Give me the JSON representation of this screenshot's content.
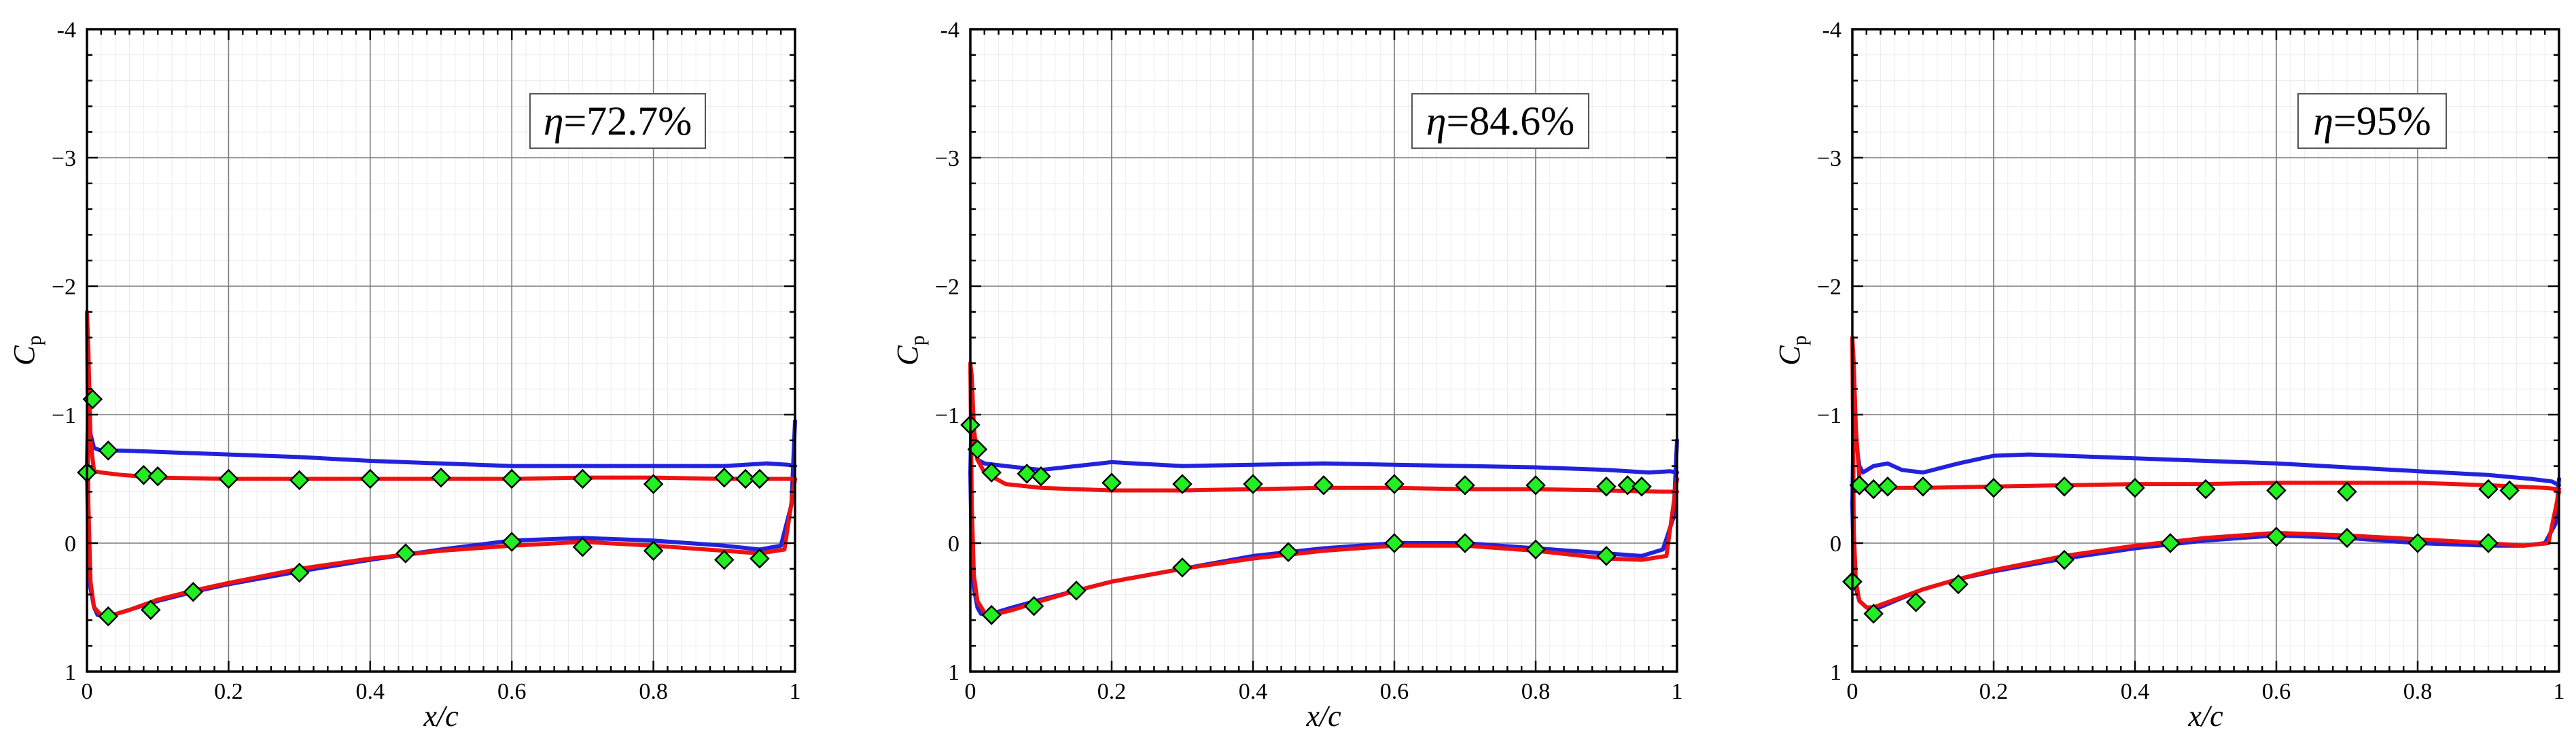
{
  "colors": {
    "blue_line": "#2222dd",
    "red_line": "#ee1111",
    "marker_fill": "#22ee22",
    "marker_edge": "#000000"
  },
  "chart_data": [
    {
      "type": "line",
      "annotation": "η=72.7%",
      "annotation_eta": "η",
      "annotation_value": "=72.7%",
      "xlabel": "x/c",
      "ylabel": "C",
      "ylabel_sub": "p",
      "xlim": [
        0,
        1
      ],
      "ylim": [
        1,
        -4
      ],
      "y_inverted": true,
      "xticks": [
        "0",
        "0.2",
        "0.4",
        "0.6",
        "0.8",
        "1"
      ],
      "yticks": [
        "-4",
        "−3",
        "−2",
        "−1",
        "0",
        "1"
      ],
      "grid": true,
      "series": [
        {
          "marker": "diamond",
          "x": [
            0.0,
            0.008,
            0.03,
            0.08,
            0.1,
            0.2,
            0.3,
            0.4,
            0.5,
            0.6,
            0.7,
            0.8,
            0.9,
            0.93,
            0.95,
            0.03,
            0.09,
            0.15,
            0.3,
            0.45,
            0.6,
            0.7,
            0.8,
            0.9,
            0.95
          ],
          "y": [
            -0.55,
            -1.12,
            -0.72,
            -0.53,
            -0.52,
            -0.5,
            -0.49,
            -0.5,
            -0.51,
            -0.5,
            -0.5,
            -0.46,
            -0.51,
            -0.5,
            -0.5,
            0.57,
            0.52,
            0.38,
            0.23,
            0.08,
            -0.01,
            0.03,
            0.06,
            0.13,
            0.12
          ]
        },
        {
          "color": "blue",
          "x": [
            1.0,
            0.99,
            0.96,
            0.9,
            0.8,
            0.7,
            0.6,
            0.5,
            0.4,
            0.3,
            0.2,
            0.1,
            0.05,
            0.02,
            0.01,
            0.005,
            0.002,
            0.0,
            0.002,
            0.005,
            0.01,
            0.015,
            0.03,
            0.06,
            0.1,
            0.15,
            0.2,
            0.3,
            0.4,
            0.5,
            0.6,
            0.7,
            0.8,
            0.9,
            0.95,
            0.98,
            0.995,
            1.0
          ],
          "y": [
            -0.6,
            -0.61,
            -0.62,
            -0.6,
            -0.6,
            -0.6,
            -0.6,
            -0.62,
            -0.64,
            -0.67,
            -0.69,
            -0.71,
            -0.72,
            -0.72,
            -0.74,
            -0.85,
            -1.2,
            -0.6,
            0.1,
            0.35,
            0.5,
            0.56,
            0.57,
            0.52,
            0.45,
            0.38,
            0.32,
            0.22,
            0.13,
            0.05,
            -0.02,
            -0.04,
            -0.02,
            0.02,
            0.05,
            0.02,
            -0.3,
            -0.95
          ]
        },
        {
          "color": "red",
          "x": [
            1.0,
            0.98,
            0.9,
            0.8,
            0.7,
            0.6,
            0.5,
            0.4,
            0.3,
            0.2,
            0.1,
            0.05,
            0.02,
            0.01,
            0.005,
            0.002,
            0.0,
            0.002,
            0.005,
            0.01,
            0.02,
            0.03,
            0.06,
            0.1,
            0.15,
            0.2,
            0.3,
            0.4,
            0.5,
            0.6,
            0.7,
            0.8,
            0.9,
            0.95,
            0.985,
            1.0
          ],
          "y": [
            -0.5,
            -0.5,
            -0.5,
            -0.51,
            -0.51,
            -0.5,
            -0.5,
            -0.5,
            -0.5,
            -0.5,
            -0.51,
            -0.53,
            -0.55,
            -0.56,
            -0.8,
            -1.5,
            -1.8,
            -0.3,
            0.3,
            0.5,
            0.56,
            0.57,
            0.52,
            0.44,
            0.37,
            0.31,
            0.2,
            0.12,
            0.06,
            0.02,
            -0.01,
            0.02,
            0.06,
            0.08,
            0.05,
            -0.5
          ]
        }
      ]
    },
    {
      "type": "line",
      "annotation": "η=84.6%",
      "annotation_eta": "η",
      "annotation_value": "=84.6%",
      "xlabel": "x/c",
      "ylabel": "C",
      "ylabel_sub": "p",
      "xlim": [
        0,
        1
      ],
      "ylim": [
        1,
        -4
      ],
      "y_inverted": true,
      "xticks": [
        "0",
        "0.2",
        "0.4",
        "0.6",
        "0.8",
        "1"
      ],
      "yticks": [
        "-4",
        "−3",
        "−2",
        "−1",
        "0",
        "1"
      ],
      "grid": true,
      "series": [
        {
          "marker": "diamond",
          "x": [
            0.0,
            0.01,
            0.03,
            0.08,
            0.1,
            0.2,
            0.3,
            0.4,
            0.5,
            0.6,
            0.7,
            0.8,
            0.9,
            0.93,
            0.95,
            0.03,
            0.09,
            0.15,
            0.3,
            0.45,
            0.6,
            0.7,
            0.8,
            0.9
          ],
          "y": [
            -0.92,
            -0.73,
            -0.55,
            -0.54,
            -0.52,
            -0.47,
            -0.46,
            -0.46,
            -0.45,
            -0.46,
            -0.45,
            -0.45,
            -0.44,
            -0.45,
            -0.44,
            0.56,
            0.49,
            0.37,
            0.19,
            0.07,
            0.0,
            0.0,
            0.05,
            0.1
          ]
        },
        {
          "color": "blue",
          "x": [
            1.0,
            0.99,
            0.96,
            0.9,
            0.8,
            0.7,
            0.6,
            0.5,
            0.4,
            0.3,
            0.2,
            0.15,
            0.1,
            0.05,
            0.02,
            0.01,
            0.005,
            0.002,
            0.0,
            0.002,
            0.005,
            0.01,
            0.015,
            0.03,
            0.06,
            0.1,
            0.15,
            0.2,
            0.3,
            0.4,
            0.5,
            0.6,
            0.7,
            0.8,
            0.9,
            0.95,
            0.98,
            0.995,
            1.0
          ],
          "y": [
            -0.55,
            -0.56,
            -0.55,
            -0.57,
            -0.59,
            -0.6,
            -0.61,
            -0.62,
            -0.61,
            -0.6,
            -0.63,
            -0.6,
            -0.57,
            -0.6,
            -0.62,
            -0.65,
            -0.85,
            -1.1,
            -0.55,
            0.1,
            0.35,
            0.5,
            0.55,
            0.55,
            0.5,
            0.44,
            0.37,
            0.3,
            0.2,
            0.1,
            0.04,
            0.0,
            0.0,
            0.04,
            0.08,
            0.1,
            0.05,
            -0.2,
            -0.8
          ]
        },
        {
          "color": "red",
          "x": [
            1.0,
            0.98,
            0.9,
            0.8,
            0.7,
            0.6,
            0.5,
            0.4,
            0.3,
            0.2,
            0.1,
            0.05,
            0.02,
            0.01,
            0.005,
            0.002,
            0.0,
            0.002,
            0.005,
            0.01,
            0.02,
            0.03,
            0.06,
            0.1,
            0.15,
            0.2,
            0.3,
            0.4,
            0.5,
            0.6,
            0.7,
            0.8,
            0.9,
            0.95,
            0.985,
            1.0
          ],
          "y": [
            -0.4,
            -0.4,
            -0.41,
            -0.42,
            -0.42,
            -0.43,
            -0.43,
            -0.42,
            -0.41,
            -0.41,
            -0.43,
            -0.46,
            -0.55,
            -0.65,
            -0.9,
            -1.3,
            -1.4,
            -0.3,
            0.25,
            0.45,
            0.54,
            0.56,
            0.52,
            0.45,
            0.37,
            0.3,
            0.2,
            0.12,
            0.06,
            0.02,
            0.02,
            0.06,
            0.12,
            0.13,
            0.1,
            -0.5
          ]
        }
      ]
    },
    {
      "type": "line",
      "annotation": "η=95%",
      "annotation_eta": "η",
      "annotation_value": "=95%",
      "xlabel": "x/c",
      "ylabel": "C",
      "ylabel_sub": "p",
      "xlim": [
        0,
        1
      ],
      "ylim": [
        1,
        -4
      ],
      "y_inverted": true,
      "xticks": [
        "0",
        "0.2",
        "0.4",
        "0.6",
        "0.8",
        "1"
      ],
      "yticks": [
        "-4",
        "−3",
        "−2",
        "−1",
        "0",
        "1"
      ],
      "grid": true,
      "series": [
        {
          "marker": "diamond",
          "x": [
            0.0,
            0.01,
            0.03,
            0.05,
            0.1,
            0.2,
            0.3,
            0.4,
            0.5,
            0.6,
            0.7,
            0.9,
            0.93,
            0.0,
            0.03,
            0.09,
            0.15,
            0.3,
            0.45,
            0.6,
            0.7,
            0.8,
            0.9
          ],
          "y": [
            0.3,
            -0.45,
            -0.42,
            -0.44,
            -0.44,
            -0.43,
            -0.44,
            -0.43,
            -0.42,
            -0.41,
            -0.4,
            -0.42,
            -0.41,
            0.3,
            0.55,
            0.46,
            0.32,
            0.13,
            0.0,
            -0.05,
            -0.04,
            0.0,
            0.0
          ]
        },
        {
          "color": "blue",
          "x": [
            1.0,
            0.99,
            0.96,
            0.9,
            0.8,
            0.7,
            0.6,
            0.5,
            0.4,
            0.3,
            0.25,
            0.2,
            0.15,
            0.1,
            0.07,
            0.05,
            0.03,
            0.015,
            0.01,
            0.005,
            0.002,
            0.0,
            0.002,
            0.005,
            0.01,
            0.02,
            0.03,
            0.06,
            0.1,
            0.15,
            0.2,
            0.3,
            0.4,
            0.5,
            0.6,
            0.7,
            0.8,
            0.9,
            0.95,
            0.98,
            0.995,
            1.0
          ],
          "y": [
            -0.45,
            -0.48,
            -0.5,
            -0.53,
            -0.56,
            -0.59,
            -0.62,
            -0.64,
            -0.66,
            -0.68,
            -0.69,
            -0.68,
            -0.62,
            -0.55,
            -0.57,
            -0.62,
            -0.6,
            -0.55,
            -0.6,
            -0.8,
            -1.1,
            -0.3,
            0.2,
            0.35,
            0.45,
            0.5,
            0.52,
            0.45,
            0.36,
            0.28,
            0.22,
            0.12,
            0.04,
            -0.02,
            -0.06,
            -0.04,
            0.0,
            0.02,
            0.02,
            0.0,
            -0.15,
            -0.5
          ]
        },
        {
          "color": "red",
          "x": [
            1.0,
            0.98,
            0.9,
            0.8,
            0.7,
            0.6,
            0.5,
            0.4,
            0.3,
            0.2,
            0.1,
            0.05,
            0.02,
            0.01,
            0.005,
            0.002,
            0.0,
            0.002,
            0.005,
            0.01,
            0.02,
            0.03,
            0.06,
            0.1,
            0.15,
            0.2,
            0.3,
            0.4,
            0.5,
            0.6,
            0.7,
            0.8,
            0.9,
            0.95,
            0.985,
            1.0
          ],
          "y": [
            -0.42,
            -0.43,
            -0.45,
            -0.47,
            -0.47,
            -0.47,
            -0.46,
            -0.46,
            -0.45,
            -0.44,
            -0.43,
            -0.43,
            -0.44,
            -0.5,
            -0.9,
            -1.4,
            -1.6,
            -0.1,
            0.3,
            0.45,
            0.5,
            0.5,
            0.44,
            0.36,
            0.28,
            0.21,
            0.1,
            0.02,
            -0.04,
            -0.08,
            -0.06,
            -0.03,
            0.0,
            0.02,
            0.0,
            -0.4
          ]
        }
      ]
    }
  ]
}
